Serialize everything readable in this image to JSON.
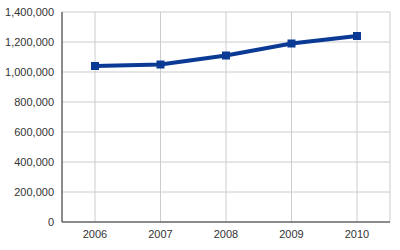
{
  "chart_data": {
    "type": "line",
    "categories": [
      "2006",
      "2007",
      "2008",
      "2009",
      "2010"
    ],
    "values": [
      1040000,
      1050000,
      1110000,
      1190000,
      1240000
    ],
    "color": "#0b3a94",
    "marker": "square",
    "line_style": "solid",
    "ylim": [
      0,
      1400000
    ],
    "yticks": [
      {
        "value": 0,
        "label": "0"
      },
      {
        "value": 200000,
        "label": "200,000"
      },
      {
        "value": 400000,
        "label": "400,000"
      },
      {
        "value": 600000,
        "label": "600,000"
      },
      {
        "value": 800000,
        "label": "800,000"
      },
      {
        "value": 1000000,
        "label": "1,000,000"
      },
      {
        "value": 1200000,
        "label": "1,200,000"
      },
      {
        "value": 1400000,
        "label": "1,400,000"
      }
    ],
    "grid": true
  }
}
